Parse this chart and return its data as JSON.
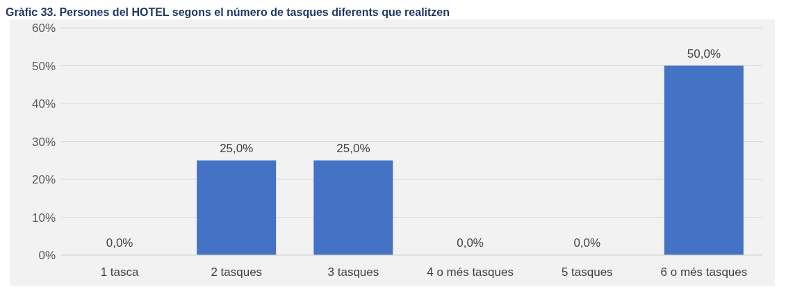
{
  "chart_data": {
    "type": "bar",
    "title": "Gràfic 33. Persones del HOTEL segons el número de tasques diferents que realitzen",
    "categories": [
      "1 tasca",
      "2 tasques",
      "3 tasques",
      "4 o més tasques",
      "5 tasques",
      "6 o més tasques"
    ],
    "values": [
      0,
      25,
      25,
      0,
      0,
      50
    ],
    "value_labels": [
      "0,0%",
      "25,0%",
      "25,0%",
      "0,0%",
      "0,0%",
      "50,0%"
    ],
    "color": "#4472c4",
    "ylim": [
      0,
      60
    ],
    "yticks": [
      {
        "value": 0,
        "label": "0%"
      },
      {
        "value": 10,
        "label": "10%"
      },
      {
        "value": 20,
        "label": "20%"
      },
      {
        "value": 30,
        "label": "30%"
      },
      {
        "value": 40,
        "label": "40%"
      },
      {
        "value": 50,
        "label": "50%"
      },
      {
        "value": 60,
        "label": "60%"
      }
    ],
    "grid": "y"
  }
}
